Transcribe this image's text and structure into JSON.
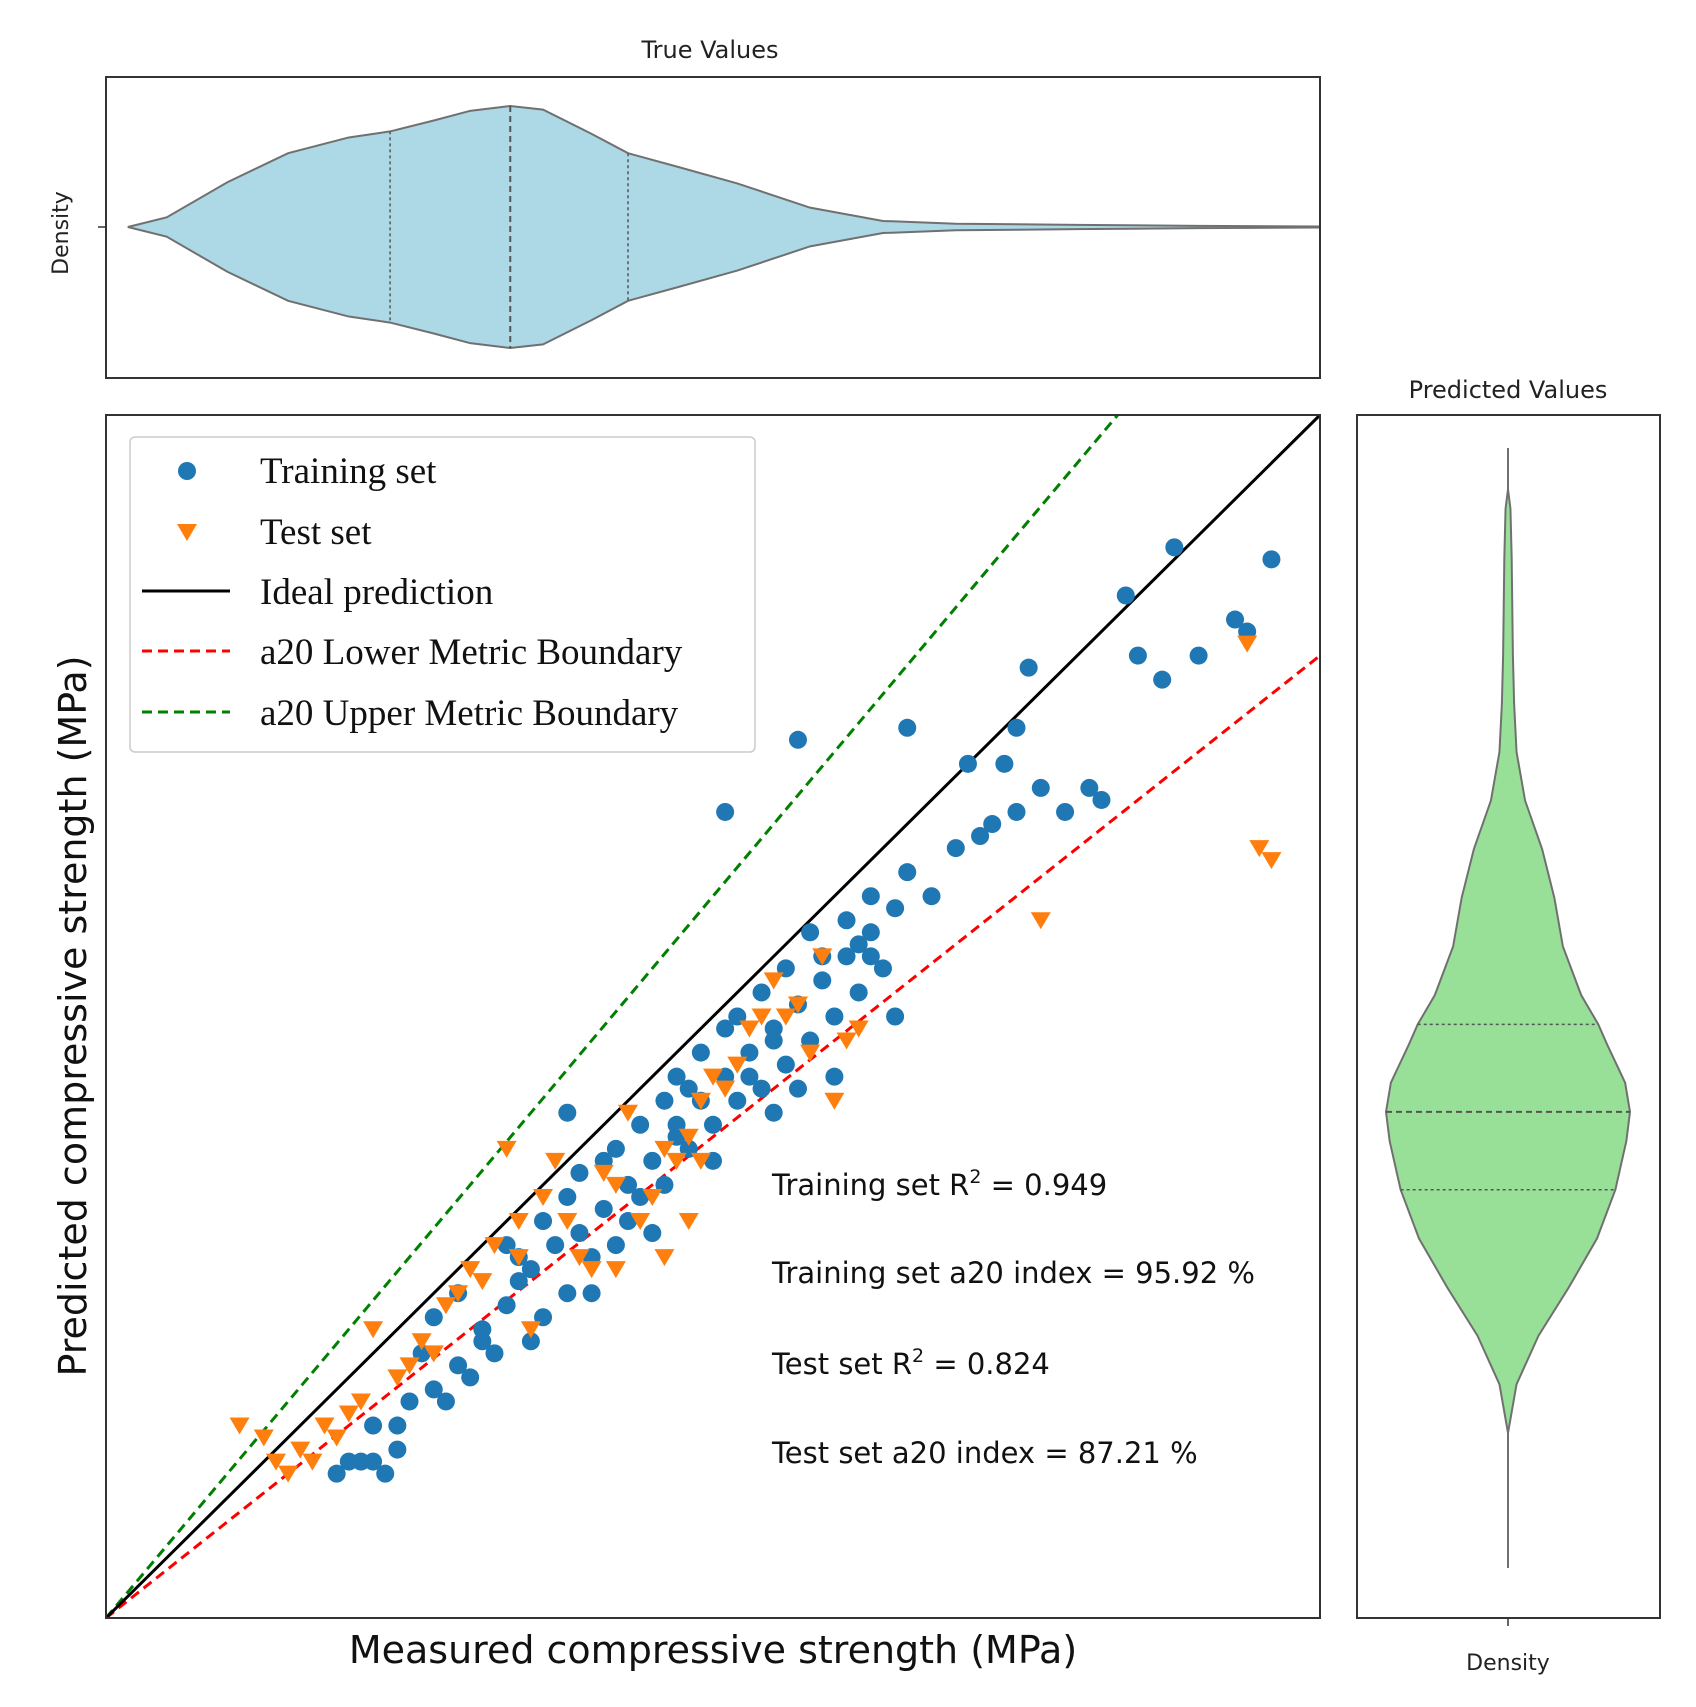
{
  "chart_data": [
    {
      "type": "violin",
      "panel": "top",
      "title": "True Values",
      "ylabel": "Density",
      "fill_color": "#add8e6",
      "orientation": "horizontal",
      "quartile_lines": "dashed",
      "quartiles_rel": [
        0.234,
        0.333,
        0.43
      ],
      "density_profile": {
        "x_rel": [
          0.018,
          0.05,
          0.1,
          0.15,
          0.2,
          0.234,
          0.27,
          0.3,
          0.333,
          0.36,
          0.4,
          0.43,
          0.47,
          0.52,
          0.58,
          0.64,
          0.7,
          0.8,
          0.9,
          1.0
        ],
        "half_width_rel": [
          0.0,
          0.08,
          0.37,
          0.61,
          0.74,
          0.79,
          0.88,
          0.96,
          1.0,
          0.97,
          0.77,
          0.61,
          0.5,
          0.36,
          0.16,
          0.05,
          0.027,
          0.018,
          0.009,
          0.004
        ]
      }
    },
    {
      "type": "scatter",
      "panel": "main",
      "xlabel": "Measured compressive strength (MPa)",
      "ylabel": "Predicted compressive strength (MPa)",
      "xlim": [
        0,
        1
      ],
      "ylim": [
        0,
        1
      ],
      "grid": false,
      "legend_position": "upper-left",
      "series": [
        {
          "name": "Training set",
          "marker": "circle",
          "color": "#1f77b4",
          "points": [
            [
              0.19,
              0.12
            ],
            [
              0.21,
              0.13
            ],
            [
              0.23,
              0.12
            ],
            [
              0.24,
              0.14
            ],
            [
              0.22,
              0.16
            ],
            [
              0.25,
              0.18
            ],
            [
              0.27,
              0.19
            ],
            [
              0.29,
              0.21
            ],
            [
              0.31,
              0.24
            ],
            [
              0.33,
              0.26
            ],
            [
              0.35,
              0.29
            ],
            [
              0.37,
              0.31
            ],
            [
              0.39,
              0.32
            ],
            [
              0.41,
              0.34
            ],
            [
              0.43,
              0.36
            ],
            [
              0.45,
              0.38
            ],
            [
              0.47,
              0.41
            ],
            [
              0.49,
              0.43
            ],
            [
              0.51,
              0.45
            ],
            [
              0.53,
              0.47
            ],
            [
              0.55,
              0.49
            ],
            [
              0.57,
              0.51
            ],
            [
              0.59,
              0.53
            ],
            [
              0.61,
              0.55
            ],
            [
              0.63,
              0.57
            ],
            [
              0.65,
              0.59
            ],
            [
              0.26,
              0.22
            ],
            [
              0.28,
              0.18
            ],
            [
              0.32,
              0.22
            ],
            [
              0.34,
              0.28
            ],
            [
              0.36,
              0.25
            ],
            [
              0.38,
              0.27
            ],
            [
              0.4,
              0.3
            ],
            [
              0.42,
              0.31
            ],
            [
              0.44,
              0.35
            ],
            [
              0.46,
              0.36
            ],
            [
              0.48,
              0.39
            ],
            [
              0.5,
              0.41
            ],
            [
              0.52,
              0.43
            ],
            [
              0.54,
              0.44
            ],
            [
              0.56,
              0.46
            ],
            [
              0.58,
              0.48
            ],
            [
              0.6,
              0.5
            ],
            [
              0.62,
              0.52
            ],
            [
              0.64,
              0.54
            ],
            [
              0.55,
              0.42
            ],
            [
              0.5,
              0.38
            ],
            [
              0.45,
              0.32
            ],
            [
              0.4,
              0.27
            ],
            [
              0.35,
              0.23
            ],
            [
              0.3,
              0.2
            ],
            [
              0.22,
              0.13
            ],
            [
              0.38,
              0.35
            ],
            [
              0.42,
              0.39
            ],
            [
              0.47,
              0.45
            ],
            [
              0.51,
              0.49
            ],
            [
              0.54,
              0.52
            ],
            [
              0.58,
              0.57
            ],
            [
              0.61,
              0.58
            ],
            [
              0.66,
              0.62
            ],
            [
              0.68,
              0.6
            ],
            [
              0.7,
              0.64
            ],
            [
              0.72,
              0.65
            ],
            [
              0.74,
              0.71
            ],
            [
              0.76,
              0.79
            ],
            [
              0.85,
              0.8
            ],
            [
              0.87,
              0.78
            ],
            [
              0.9,
              0.8
            ],
            [
              0.84,
              0.85
            ],
            [
              0.88,
              0.89
            ],
            [
              0.96,
              0.88
            ],
            [
              0.94,
              0.82
            ],
            [
              0.93,
              0.83
            ],
            [
              0.75,
              0.74
            ],
            [
              0.71,
              0.71
            ],
            [
              0.77,
              0.69
            ],
            [
              0.79,
              0.67
            ],
            [
              0.81,
              0.69
            ],
            [
              0.82,
              0.68
            ],
            [
              0.75,
              0.67
            ],
            [
              0.73,
              0.66
            ],
            [
              0.6,
              0.45
            ],
            [
              0.51,
              0.67
            ],
            [
              0.57,
              0.73
            ],
            [
              0.66,
              0.74
            ],
            [
              0.63,
              0.6
            ],
            [
              0.55,
              0.48
            ],
            [
              0.44,
              0.41
            ],
            [
              0.38,
              0.42
            ],
            [
              0.27,
              0.25
            ],
            [
              0.24,
              0.16
            ],
            [
              0.2,
              0.13
            ],
            [
              0.34,
              0.3
            ],
            [
              0.48,
              0.44
            ],
            [
              0.62,
              0.56
            ],
            [
              0.29,
              0.27
            ],
            [
              0.33,
              0.31
            ],
            [
              0.41,
              0.38
            ],
            [
              0.46,
              0.43
            ],
            [
              0.52,
              0.5
            ],
            [
              0.56,
              0.54
            ],
            [
              0.59,
              0.55
            ],
            [
              0.63,
              0.55
            ],
            [
              0.36,
              0.33
            ],
            [
              0.31,
              0.23
            ],
            [
              0.49,
              0.47
            ],
            [
              0.53,
              0.45
            ],
            [
              0.57,
              0.44
            ],
            [
              0.39,
              0.37
            ],
            [
              0.43,
              0.33
            ],
            [
              0.47,
              0.4
            ],
            [
              0.65,
              0.5
            ]
          ]
        },
        {
          "name": "Test set",
          "marker": "triangle-down",
          "color": "#ff7f0e",
          "points": [
            [
              0.94,
              0.81
            ],
            [
              0.95,
              0.64
            ],
            [
              0.96,
              0.63
            ],
            [
              0.77,
              0.58
            ],
            [
              0.54,
              0.5
            ],
            [
              0.59,
              0.55
            ],
            [
              0.58,
              0.47
            ],
            [
              0.61,
              0.48
            ],
            [
              0.6,
              0.43
            ],
            [
              0.46,
              0.39
            ],
            [
              0.48,
              0.4
            ],
            [
              0.45,
              0.35
            ],
            [
              0.41,
              0.37
            ],
            [
              0.37,
              0.38
            ],
            [
              0.33,
              0.39
            ],
            [
              0.36,
              0.35
            ],
            [
              0.34,
              0.3
            ],
            [
              0.3,
              0.29
            ],
            [
              0.28,
              0.26
            ],
            [
              0.25,
              0.21
            ],
            [
              0.22,
              0.24
            ],
            [
              0.2,
              0.17
            ],
            [
              0.18,
              0.16
            ],
            [
              0.16,
              0.14
            ],
            [
              0.14,
              0.13
            ],
            [
              0.13,
              0.15
            ],
            [
              0.15,
              0.12
            ],
            [
              0.11,
              0.16
            ],
            [
              0.17,
              0.13
            ],
            [
              0.19,
              0.15
            ],
            [
              0.21,
              0.18
            ],
            [
              0.24,
              0.2
            ],
            [
              0.26,
              0.23
            ],
            [
              0.29,
              0.27
            ],
            [
              0.31,
              0.28
            ],
            [
              0.34,
              0.33
            ],
            [
              0.38,
              0.33
            ],
            [
              0.35,
              0.24
            ],
            [
              0.4,
              0.29
            ],
            [
              0.44,
              0.33
            ],
            [
              0.47,
              0.38
            ],
            [
              0.49,
              0.43
            ],
            [
              0.52,
              0.46
            ],
            [
              0.55,
              0.53
            ],
            [
              0.57,
              0.51
            ],
            [
              0.42,
              0.36
            ],
            [
              0.39,
              0.3
            ],
            [
              0.27,
              0.22
            ],
            [
              0.32,
              0.31
            ],
            [
              0.43,
              0.42
            ],
            [
              0.5,
              0.45
            ],
            [
              0.53,
              0.49
            ],
            [
              0.56,
              0.5
            ],
            [
              0.62,
              0.49
            ],
            [
              0.49,
              0.38
            ],
            [
              0.51,
              0.44
            ],
            [
              0.46,
              0.3
            ],
            [
              0.48,
              0.33
            ],
            [
              0.42,
              0.29
            ]
          ]
        },
        {
          "name": "Ideal prediction",
          "style": "solid",
          "color": "#000000",
          "slope": 1.0
        },
        {
          "name": "a20 Lower Metric Boundary",
          "style": "dashed",
          "color": "#ff0000",
          "slope": 0.8
        },
        {
          "name": "a20 Upper Metric Boundary",
          "style": "dashed",
          "color": "#008000",
          "slope": 1.2
        }
      ],
      "annotations": [
        {
          "label": "Training set R",
          "sup": "2",
          "value": " = 0.949"
        },
        {
          "label": "Training set a20 index = 95.92 %"
        },
        {
          "label": "Test set R",
          "sup": "2",
          "value": " = 0.824"
        },
        {
          "label": "Test set a20 index = 87.21 %"
        }
      ]
    },
    {
      "type": "violin",
      "panel": "right",
      "title": "Predicted Values",
      "xlabel": "Density",
      "fill_color": "#98e098",
      "orientation": "vertical",
      "quartile_lines": "dashed",
      "quartiles_rel": [
        0.25,
        0.33,
        0.42
      ],
      "density_profile": {
        "y_rel": [
          0.0,
          0.05,
          0.1,
          0.15,
          0.2,
          0.25,
          0.3,
          0.33,
          0.36,
          0.4,
          0.42,
          0.45,
          0.5,
          0.55,
          0.6,
          0.65,
          0.7,
          0.75,
          0.8,
          0.85,
          0.9,
          0.95,
          0.97
        ],
        "half_width_rel": [
          0.0,
          0.07,
          0.25,
          0.5,
          0.73,
          0.88,
          0.97,
          1.0,
          0.96,
          0.81,
          0.74,
          0.6,
          0.45,
          0.38,
          0.28,
          0.14,
          0.07,
          0.05,
          0.04,
          0.035,
          0.03,
          0.02,
          0.0
        ]
      }
    }
  ]
}
